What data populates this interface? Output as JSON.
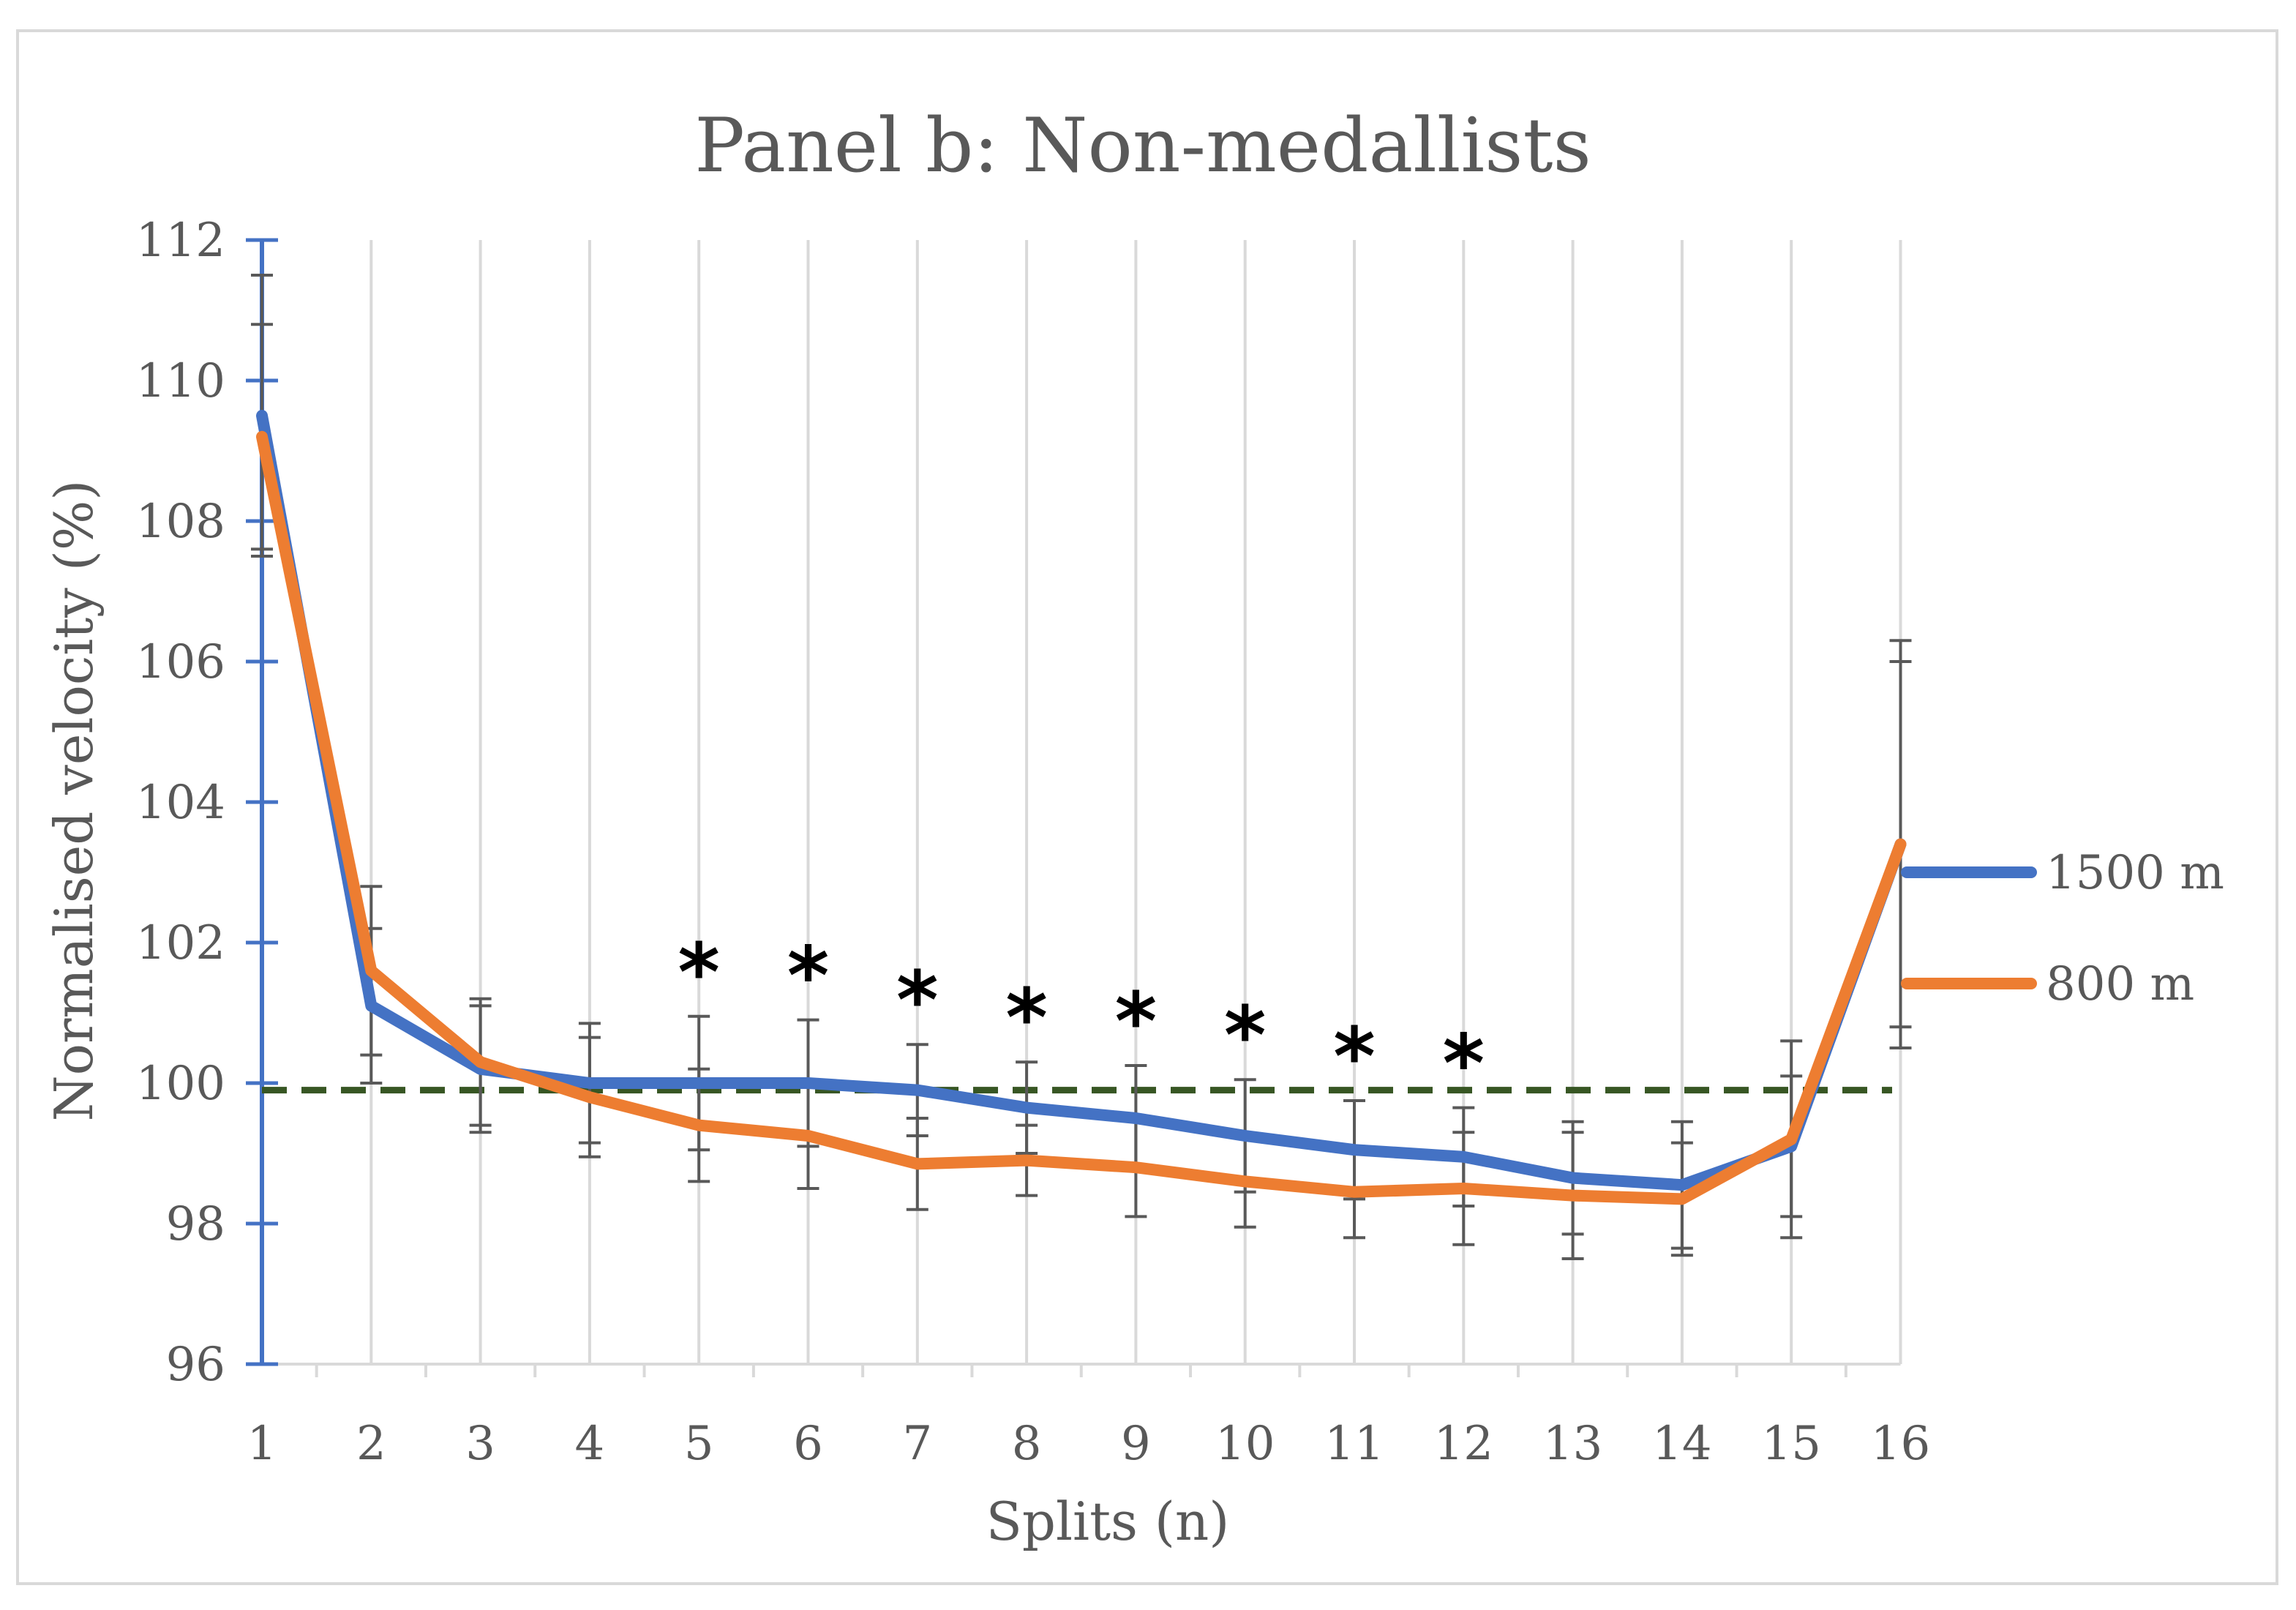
{
  "chart_data": {
    "type": "line",
    "title": "Panel b: Non-medallists",
    "xlabel": "Splits (n)",
    "ylabel": "Normalised velocity (%)",
    "categories": [
      "1",
      "2",
      "3",
      "4",
      "5",
      "6",
      "7",
      "8",
      "9",
      "10",
      "11",
      "12",
      "13",
      "14",
      "15",
      "16"
    ],
    "ylim": [
      96,
      112
    ],
    "yticks": [
      96,
      98,
      100,
      102,
      104,
      106,
      108,
      110,
      112
    ],
    "grid": "vertical",
    "legend_position": "right",
    "reference_line": {
      "value": 99.9,
      "style": "dashed",
      "color": "#375623"
    },
    "significance_marker": "*",
    "significant_splits": [
      "5",
      "6",
      "7",
      "8",
      "9",
      "10",
      "11",
      "12"
    ],
    "series": [
      {
        "name": "1500 m",
        "color": "#4472C4",
        "values": [
          109.5,
          101.1,
          100.2,
          100.0,
          100.0,
          100.0,
          99.9,
          99.65,
          99.5,
          99.25,
          99.05,
          98.95,
          98.65,
          98.55,
          99.1,
          103.4
        ],
        "error": [
          2.0,
          1.1,
          0.9,
          0.85,
          0.95,
          0.9,
          0.65,
          0.65,
          0.75,
          0.8,
          0.7,
          0.7,
          0.8,
          0.9,
          1.0,
          2.6
        ]
      },
      {
        "name": "800 m",
        "color": "#ED7D31",
        "values": [
          109.2,
          101.6,
          100.3,
          99.8,
          99.4,
          99.25,
          98.85,
          98.9,
          98.8,
          98.6,
          98.45,
          98.5,
          98.4,
          98.35,
          99.2,
          103.4
        ],
        "error": [
          1.6,
          1.2,
          0.9,
          0.85,
          0.8,
          0.75,
          0.65,
          0.5,
          0.7,
          0.65,
          0.65,
          0.8,
          0.9,
          0.8,
          1.4,
          2.9
        ]
      }
    ]
  }
}
